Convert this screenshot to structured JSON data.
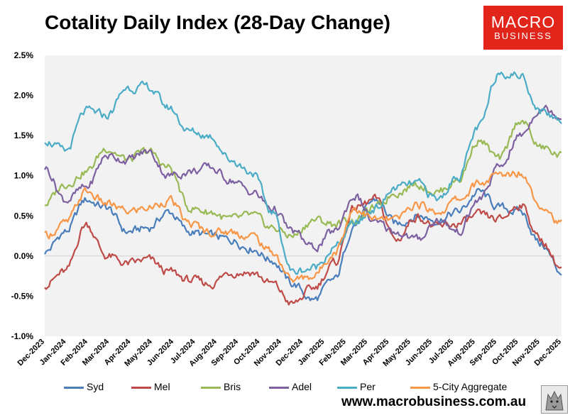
{
  "header": {
    "title": "Cotality Daily Index (28-Day Change)"
  },
  "logo": {
    "line1": "MACRO",
    "line2": "BUSINESS",
    "bg": "#e1251b"
  },
  "footer": {
    "url": "www.macrobusiness.com.au"
  },
  "chart_data": {
    "type": "line",
    "title": "Cotality Daily Index (28-Day Change)",
    "xlabel": "",
    "ylabel": "",
    "ylim": [
      -1.0,
      2.5
    ],
    "y_ticks": [
      "2.5%",
      "2.0%",
      "1.5%",
      "1.0%",
      "0.5%",
      "0.0%",
      "-0.5%",
      "-1.0%"
    ],
    "y_tick_values": [
      2.5,
      2.0,
      1.5,
      1.0,
      0.5,
      0.0,
      -0.5,
      -1.0
    ],
    "x_ticks": [
      "Dec-2023",
      "Jan-2024",
      "Feb-2024",
      "Mar-2024",
      "Apr-2024",
      "May-2024",
      "Jun-2024",
      "Jul-2024",
      "Aug-2024",
      "Sep-2024",
      "Oct-2024",
      "Nov-2024",
      "Dec-2024",
      "Jan-2025",
      "Feb-2025",
      "Mar-2025",
      "Apr-2025",
      "May-2025",
      "Jun-2025",
      "Jul-2025",
      "Aug-2025",
      "Sep-2025",
      "Oct-2025",
      "Nov-2025",
      "Dec-2025"
    ],
    "legend_position": "bottom",
    "grid": "zero-line-only",
    "series": [
      {
        "name": "Syd",
        "color": "#4a7ebb",
        "values": [
          0.05,
          0.3,
          0.7,
          0.6,
          0.3,
          0.35,
          0.55,
          0.3,
          0.25,
          0.2,
          0.1,
          -0.05,
          -0.35,
          -0.55,
          -0.3,
          0.4,
          0.7,
          0.4,
          0.5,
          0.45,
          0.55,
          0.8,
          0.6,
          0.55,
          0.15,
          -0.2
        ]
      },
      {
        "name": "Mel",
        "color": "#be4b48",
        "values": [
          -0.35,
          -0.2,
          0.4,
          0.0,
          -0.1,
          -0.05,
          -0.2,
          -0.3,
          -0.35,
          -0.2,
          -0.2,
          -0.35,
          -0.6,
          -0.4,
          -0.1,
          0.6,
          0.7,
          0.2,
          0.5,
          0.35,
          0.4,
          0.5,
          0.45,
          0.65,
          0.2,
          -0.15
        ]
      },
      {
        "name": "Bris",
        "color": "#98b954",
        "values": [
          0.65,
          0.9,
          1.05,
          1.35,
          1.2,
          1.3,
          1.1,
          0.6,
          0.55,
          0.45,
          0.5,
          0.35,
          0.25,
          0.45,
          0.4,
          0.45,
          0.6,
          0.8,
          0.9,
          0.8,
          0.95,
          1.45,
          1.2,
          1.7,
          1.35,
          1.25
        ]
      },
      {
        "name": "Adel",
        "color": "#7d60a0",
        "values": [
          1.1,
          0.7,
          0.85,
          1.25,
          1.2,
          1.3,
          1.0,
          1.05,
          1.1,
          0.95,
          0.8,
          0.6,
          0.3,
          0.1,
          0.3,
          0.75,
          0.4,
          0.3,
          0.2,
          0.45,
          0.3,
          0.7,
          1.1,
          1.5,
          1.85,
          1.75
        ]
      },
      {
        "name": "Per",
        "color": "#4bacc6",
        "values": [
          1.45,
          1.3,
          1.8,
          1.75,
          2.1,
          2.1,
          1.85,
          1.55,
          1.5,
          1.2,
          1.05,
          0.55,
          -0.2,
          -0.15,
          0.1,
          0.4,
          0.6,
          0.85,
          0.9,
          0.7,
          1.0,
          1.6,
          2.3,
          2.25,
          1.8,
          1.7
        ]
      },
      {
        "name": "5-City Aggregate",
        "color": "#f79646",
        "values": [
          0.25,
          0.4,
          0.8,
          0.65,
          0.55,
          0.6,
          0.7,
          0.4,
          0.3,
          0.3,
          0.25,
          0.05,
          -0.3,
          -0.25,
          0.05,
          0.6,
          0.45,
          0.45,
          0.65,
          0.55,
          0.7,
          0.9,
          1.0,
          1.05,
          0.65,
          0.4
        ]
      }
    ]
  }
}
